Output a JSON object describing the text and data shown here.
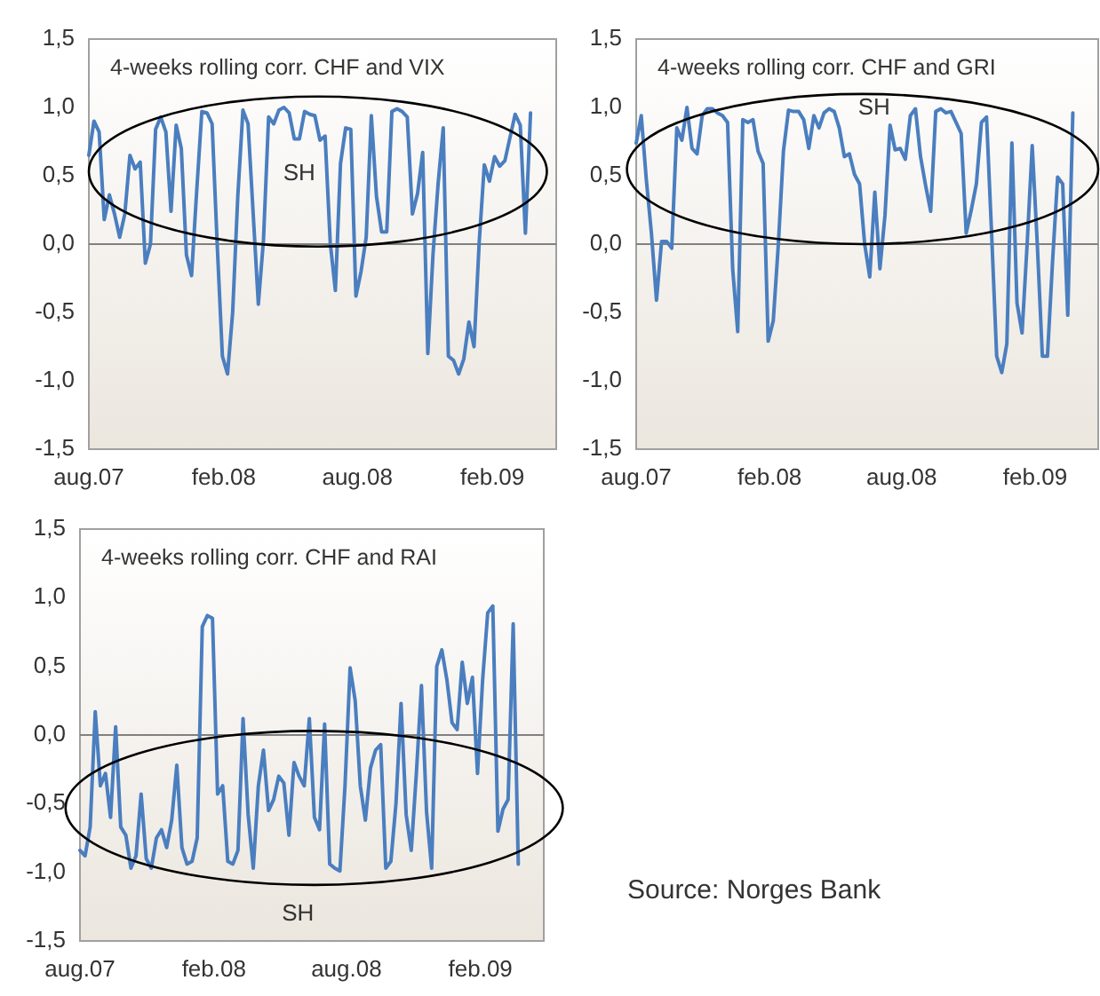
{
  "chart_data": [
    {
      "type": "line",
      "title": "4-weeks rolling corr. CHF and VIX",
      "annotations": [
        "SH"
      ],
      "x": [
        "2007-08-01",
        "2007-08-08",
        "2007-08-15",
        "2007-08-22",
        "2007-08-29",
        "2007-09-05",
        "2007-09-12",
        "2007-09-19",
        "2007-09-26",
        "2007-10-03",
        "2007-10-10",
        "2007-10-17",
        "2007-10-24",
        "2007-10-31",
        "2007-11-07",
        "2007-11-14",
        "2007-11-21",
        "2007-11-28",
        "2007-12-05",
        "2007-12-12",
        "2007-12-19",
        "2007-12-26",
        "2008-01-02",
        "2008-01-09",
        "2008-01-16",
        "2008-01-23",
        "2008-01-30",
        "2008-02-06",
        "2008-02-13",
        "2008-02-20",
        "2008-02-27",
        "2008-03-05",
        "2008-03-12",
        "2008-03-19",
        "2008-03-26",
        "2008-04-02",
        "2008-04-09",
        "2008-04-16",
        "2008-04-23",
        "2008-04-30",
        "2008-05-07",
        "2008-05-14",
        "2008-05-21",
        "2008-05-28",
        "2008-06-04",
        "2008-06-11",
        "2008-06-18",
        "2008-06-25",
        "2008-07-02",
        "2008-07-09",
        "2008-07-16",
        "2008-07-23",
        "2008-07-30",
        "2008-08-06",
        "2008-08-13",
        "2008-08-20",
        "2008-08-27",
        "2008-09-03",
        "2008-09-10",
        "2008-09-17",
        "2008-09-24",
        "2008-10-01",
        "2008-10-08",
        "2008-10-15",
        "2008-10-22",
        "2008-10-29",
        "2008-11-05",
        "2008-11-12",
        "2008-11-19",
        "2008-11-26",
        "2008-12-03",
        "2008-12-10",
        "2008-12-17",
        "2008-12-24",
        "2008-12-31",
        "2009-01-07",
        "2009-01-14",
        "2009-01-21",
        "2009-01-28",
        "2009-02-04",
        "2009-02-11",
        "2009-02-18",
        "2009-02-25",
        "2009-03-04",
        "2009-03-11",
        "2009-03-18",
        "2009-03-25"
      ],
      "series": [
        {
          "color": "#4a7ebf",
          "values": [
            0.65,
            0.9,
            0.82,
            0.18,
            0.36,
            0.22,
            0.05,
            0.22,
            0.65,
            0.55,
            0.6,
            -0.14,
            0,
            0.84,
            0.93,
            0.82,
            0.24,
            0.87,
            0.7,
            -0.08,
            -0.23,
            0.39,
            0.97,
            0.96,
            0.88,
            -0.01,
            -0.82,
            -0.95,
            -0.5,
            0.35,
            0.98,
            0.88,
            0.22,
            -0.44,
            0.03,
            0.93,
            0.88,
            0.98,
            1.0,
            0.96,
            0.77,
            0.77,
            0.97,
            0.95,
            0.94,
            0.76,
            0.79,
            0.01,
            -0.34,
            0.59,
            0.85,
            0.84,
            -0.38,
            -0.2,
            0.05,
            0.94,
            0.35,
            0.09,
            0.09,
            0.97,
            0.99,
            0.97,
            0.93,
            0.22,
            0.37,
            0.67,
            -0.8,
            -0.08,
            0.44,
            0.85,
            -0.82,
            -0.85,
            -0.95,
            -0.84,
            -0.57,
            -0.75,
            0.01,
            0.58,
            0.46,
            0.64,
            0.57,
            0.61,
            0.78,
            0.95,
            0.87,
            0.08,
            0.96
          ]
        }
      ],
      "xlim": [
        "2007-08-01",
        "2009-04-29"
      ],
      "xticks": [
        {
          "value": "2007-08-01",
          "label": "aug.07"
        },
        {
          "value": "2008-02-01",
          "label": "feb.08"
        },
        {
          "value": "2008-08-01",
          "label": "aug.08"
        },
        {
          "value": "2009-02-01",
          "label": "feb.09"
        }
      ],
      "ylim": [
        -1.5,
        1.5
      ],
      "yticks": [
        {
          "value": -1.5,
          "label": "-1,5"
        },
        {
          "value": -1,
          "label": "-1,0"
        },
        {
          "value": -0.5,
          "label": "-0,5"
        },
        {
          "value": 0,
          "label": "0,0"
        },
        {
          "value": 0.5,
          "label": "0,5"
        },
        {
          "value": 1,
          "label": "1,0"
        },
        {
          "value": 1.5,
          "label": "1,5"
        }
      ],
      "ref_lines": [
        {
          "axis": "y",
          "value": 0,
          "color": "#808080"
        }
      ]
    },
    {
      "type": "line",
      "title": "4-weeks rolling corr. CHF and GRI",
      "annotations": [
        "SH"
      ],
      "x": [
        "2007-08-01",
        "2007-08-08",
        "2007-08-15",
        "2007-08-22",
        "2007-08-29",
        "2007-09-05",
        "2007-09-12",
        "2007-09-19",
        "2007-09-26",
        "2007-10-03",
        "2007-10-10",
        "2007-10-17",
        "2007-10-24",
        "2007-10-31",
        "2007-11-07",
        "2007-11-14",
        "2007-11-21",
        "2007-11-28",
        "2007-12-05",
        "2007-12-12",
        "2007-12-19",
        "2007-12-26",
        "2008-01-02",
        "2008-01-09",
        "2008-01-16",
        "2008-01-23",
        "2008-01-30",
        "2008-02-06",
        "2008-02-13",
        "2008-02-20",
        "2008-02-27",
        "2008-03-05",
        "2008-03-12",
        "2008-03-19",
        "2008-03-26",
        "2008-04-02",
        "2008-04-09",
        "2008-04-16",
        "2008-04-23",
        "2008-04-30",
        "2008-05-07",
        "2008-05-14",
        "2008-05-21",
        "2008-05-28",
        "2008-06-04",
        "2008-06-11",
        "2008-06-18",
        "2008-06-25",
        "2008-07-02",
        "2008-07-09",
        "2008-07-16",
        "2008-07-23",
        "2008-07-30",
        "2008-08-06",
        "2008-08-13",
        "2008-08-20",
        "2008-08-27",
        "2008-09-03",
        "2008-09-10",
        "2008-09-17",
        "2008-09-24",
        "2008-10-01",
        "2008-10-08",
        "2008-10-15",
        "2008-10-22",
        "2008-10-29",
        "2008-11-05",
        "2008-11-12",
        "2008-11-19",
        "2008-11-26",
        "2008-12-03",
        "2008-12-10",
        "2008-12-17",
        "2008-12-24",
        "2008-12-31",
        "2009-01-07",
        "2009-01-14",
        "2009-01-21",
        "2009-01-28",
        "2009-02-04",
        "2009-02-11",
        "2009-02-18",
        "2009-02-25",
        "2009-03-04",
        "2009-03-11",
        "2009-03-18",
        "2009-03-25"
      ],
      "series": [
        {
          "color": "#4a7ebf",
          "values": [
            0.74,
            0.94,
            0.47,
            0.08,
            -0.41,
            0.02,
            0.02,
            -0.03,
            0.85,
            0.76,
            1.0,
            0.7,
            0.66,
            0.94,
            0.99,
            0.99,
            0.96,
            0.94,
            0.89,
            -0.18,
            -0.64,
            0.91,
            0.89,
            0.91,
            0.68,
            0.59,
            -0.71,
            -0.56,
            0,
            0.68,
            0.98,
            0.97,
            0.97,
            0.91,
            0.7,
            0.94,
            0.85,
            0.96,
            0.99,
            0.97,
            0.85,
            0.64,
            0.66,
            0.51,
            0.44,
            0,
            -0.24,
            0.38,
            -0.18,
            0.21,
            0.87,
            0.69,
            0.7,
            0.62,
            0.94,
            0.99,
            0.64,
            0.43,
            0.24,
            0.97,
            0.99,
            0.96,
            0.97,
            0.89,
            0.81,
            0.08,
            0.25,
            0.44,
            0.89,
            0.93,
            0.08,
            -0.82,
            -0.94,
            -0.73,
            0.74,
            -0.43,
            -0.65,
            0,
            0.72,
            0,
            -0.82,
            -0.82,
            -0.13,
            0.49,
            0.44,
            -0.52,
            0.96
          ]
        }
      ],
      "xlim": [
        "2007-08-01",
        "2009-04-29"
      ],
      "xticks": [
        {
          "value": "2007-08-01",
          "label": "aug.07"
        },
        {
          "value": "2008-02-01",
          "label": "feb.08"
        },
        {
          "value": "2008-08-01",
          "label": "aug.08"
        },
        {
          "value": "2009-02-01",
          "label": "feb.09"
        }
      ],
      "ylim": [
        -1.5,
        1.5
      ],
      "yticks": [
        {
          "value": -1.5,
          "label": "-1,5"
        },
        {
          "value": -1,
          "label": "-1,0"
        },
        {
          "value": -0.5,
          "label": "-0,5"
        },
        {
          "value": 0,
          "label": "0,0"
        },
        {
          "value": 0.5,
          "label": "0,5"
        },
        {
          "value": 1,
          "label": "1,0"
        },
        {
          "value": 1.5,
          "label": "1,5"
        }
      ],
      "ref_lines": [
        {
          "axis": "y",
          "value": 0,
          "color": "#808080"
        }
      ]
    },
    {
      "type": "line",
      "title": "4-weeks rolling corr. CHF and RAI",
      "annotations": [
        "SH",
        "Source: Norges Bank"
      ],
      "x": [
        "2007-08-01",
        "2007-08-08",
        "2007-08-15",
        "2007-08-22",
        "2007-08-29",
        "2007-09-05",
        "2007-09-12",
        "2007-09-19",
        "2007-09-26",
        "2007-10-03",
        "2007-10-10",
        "2007-10-17",
        "2007-10-24",
        "2007-10-31",
        "2007-11-07",
        "2007-11-14",
        "2007-11-21",
        "2007-11-28",
        "2007-12-05",
        "2007-12-12",
        "2007-12-19",
        "2007-12-26",
        "2008-01-02",
        "2008-01-09",
        "2008-01-16",
        "2008-01-23",
        "2008-01-30",
        "2008-02-06",
        "2008-02-13",
        "2008-02-20",
        "2008-02-27",
        "2008-03-05",
        "2008-03-12",
        "2008-03-19",
        "2008-03-26",
        "2008-04-02",
        "2008-04-09",
        "2008-04-16",
        "2008-04-23",
        "2008-04-30",
        "2008-05-07",
        "2008-05-14",
        "2008-05-21",
        "2008-05-28",
        "2008-06-04",
        "2008-06-11",
        "2008-06-18",
        "2008-06-25",
        "2008-07-02",
        "2008-07-09",
        "2008-07-16",
        "2008-07-23",
        "2008-07-30",
        "2008-08-06",
        "2008-08-13",
        "2008-08-20",
        "2008-08-27",
        "2008-09-03",
        "2008-09-10",
        "2008-09-17",
        "2008-09-24",
        "2008-10-01",
        "2008-10-08",
        "2008-10-15",
        "2008-10-22",
        "2008-10-29",
        "2008-11-05",
        "2008-11-12",
        "2008-11-19",
        "2008-11-26",
        "2008-12-03",
        "2008-12-10",
        "2008-12-17",
        "2008-12-24",
        "2008-12-31",
        "2009-01-07",
        "2009-01-14",
        "2009-01-21",
        "2009-01-28",
        "2009-02-04",
        "2009-02-11",
        "2009-02-18",
        "2009-02-25",
        "2009-03-04",
        "2009-03-11",
        "2009-03-18",
        "2009-03-25"
      ],
      "series": [
        {
          "color": "#4a7ebf",
          "values": [
            -0.84,
            -0.88,
            -0.67,
            0.17,
            -0.37,
            -0.28,
            -0.6,
            0.06,
            -0.67,
            -0.73,
            -0.97,
            -0.88,
            -0.43,
            -0.9,
            -0.97,
            -0.75,
            -0.69,
            -0.82,
            -0.62,
            -0.22,
            -0.82,
            -0.94,
            -0.92,
            -0.75,
            0.79,
            0.87,
            0.85,
            -0.43,
            -0.37,
            -0.92,
            -0.94,
            -0.84,
            0.12,
            -0.58,
            -0.97,
            -0.37,
            -0.11,
            -0.55,
            -0.47,
            -0.3,
            -0.35,
            -0.73,
            -0.2,
            -0.3,
            -0.37,
            0.12,
            -0.6,
            -0.69,
            0.08,
            -0.94,
            -0.97,
            -0.99,
            -0.37,
            0.49,
            0.25,
            -0.37,
            -0.62,
            -0.24,
            -0.11,
            -0.07,
            -0.97,
            -0.92,
            -0.5,
            0.23,
            -0.58,
            -0.84,
            -0.28,
            0.36,
            -0.56,
            -0.97,
            0.5,
            0.62,
            0.4,
            0.09,
            0.04,
            0.53,
            0.23,
            0.42,
            -0.28,
            0.4,
            0.89,
            0.94,
            -0.7,
            -0.54,
            -0.47,
            0.81,
            -0.94
          ]
        }
      ],
      "xlim": [
        "2007-08-01",
        "2009-04-29"
      ],
      "xticks": [
        {
          "value": "2007-08-01",
          "label": "aug.07"
        },
        {
          "value": "2008-02-01",
          "label": "feb.08"
        },
        {
          "value": "2008-08-01",
          "label": "aug.08"
        },
        {
          "value": "2009-02-01",
          "label": "feb.09"
        }
      ],
      "ylim": [
        -1.5,
        1.5
      ],
      "yticks": [
        {
          "value": -1.5,
          "label": "-1,5"
        },
        {
          "value": -1,
          "label": "-1,0"
        },
        {
          "value": -0.5,
          "label": "-0,5"
        },
        {
          "value": 0,
          "label": "0,0"
        },
        {
          "value": 0.5,
          "label": "0,5"
        },
        {
          "value": 1,
          "label": "1,0"
        },
        {
          "value": 1.5,
          "label": "1,5"
        }
      ],
      "ref_lines": [
        {
          "axis": "y",
          "value": 0,
          "color": "#808080"
        }
      ]
    }
  ]
}
